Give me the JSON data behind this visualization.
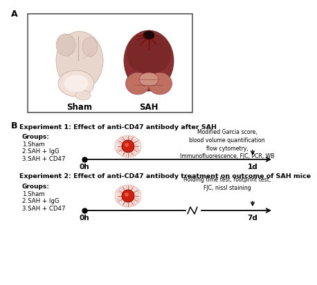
{
  "panel_A_label": "A",
  "panel_B_label": "B",
  "sham_label": "Sham",
  "sah_label": "SAH",
  "exp1_title": "Experiment 1: Effect of anti-CD47 antibody after SAH",
  "exp2_title": "Experiment 2: Effect of anti-CD47 antibody treatment on outcome of SAH mice",
  "groups_label": "Groups:",
  "groups_list": [
    "1.Sham",
    "2.SAH + IgG",
    "3.SAH + CD47"
  ],
  "exp1_timepoints": [
    "0h",
    "1d"
  ],
  "exp2_timepoints": [
    "0h",
    "7d"
  ],
  "exp1_annotations": "Modified Garcia score,\nblood volume quantification\nflow cytometry,\nImmunofluorescence, FJC, PCR, WB",
  "exp2_annotations": "Holding time test, footprint test,\nFJC, nissl staining",
  "background_color": "#ffffff",
  "text_color": "#000000",
  "timeline_color": "#000000"
}
